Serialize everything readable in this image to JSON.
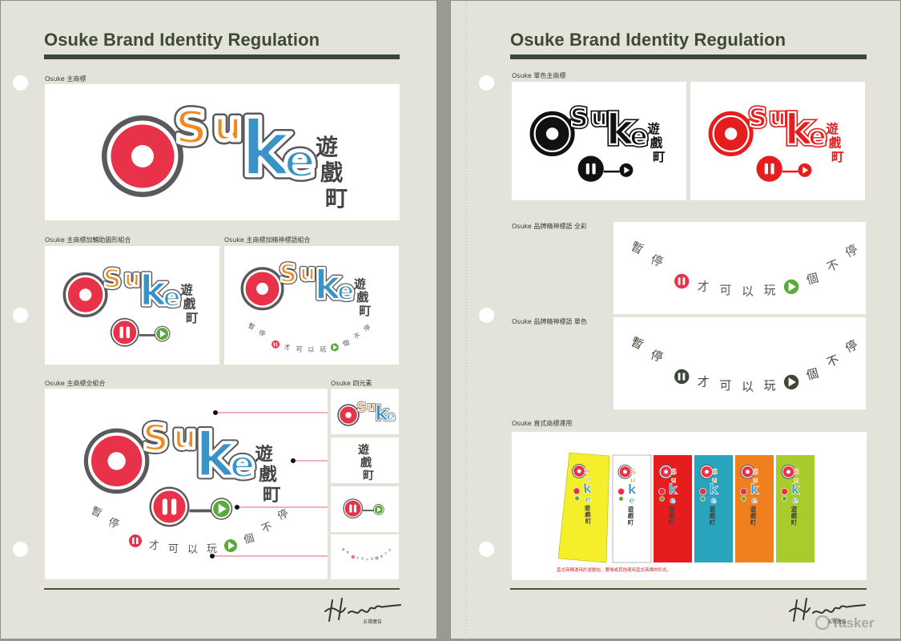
{
  "left_page": {
    "title": "Osuke Brand Identity Regulation",
    "labels": {
      "main_logo": "Osuke 主商標",
      "logo_graphic": "Osuke 主商標加輔助圖形組合",
      "logo_slogan": "Osuke 主商標加精神標語組合",
      "logo_full": "Osuke 主商標全組合",
      "four_elements": "Osuke 四元素"
    }
  },
  "right_page": {
    "title": "Osuke Brand Identity Regulation",
    "labels": {
      "mono_logo": "Osuke 單色主商標",
      "slogan_color": "Osuke 品牌精神標語 全彩",
      "slogan_mono": "Osuke 品牌精神標語 單色",
      "vertical_logo": "Osuke 直式商標運用"
    },
    "vertical_note": "直式商標運用於遊戲包、賽場或其他適用直式商標的形式。"
  },
  "logo": {
    "letters": [
      "O",
      "S",
      "u",
      "k",
      "e"
    ],
    "cjk": [
      "遊",
      "戲",
      "町"
    ]
  },
  "slogan": {
    "before": [
      "暫",
      "停"
    ],
    "middle": [
      "才",
      "可",
      "以",
      "玩"
    ],
    "after": [
      "個",
      "不",
      "停"
    ]
  },
  "signature": {
    "script": "Hudei",
    "company": "五得廣告"
  },
  "watermark": "Tasker",
  "colors": {
    "olive": "#3c4737",
    "red": "#e8324a",
    "orange": "#f08a1c",
    "blue": "#3a93c7",
    "green": "#59a93b",
    "banner_yellow": "#f4ef2a",
    "banner_white": "#ffffff",
    "banner_red": "#e61d1d",
    "banner_teal": "#2aa3bd",
    "banner_orange": "#f0801d",
    "banner_lime": "#a8cc2b"
  }
}
